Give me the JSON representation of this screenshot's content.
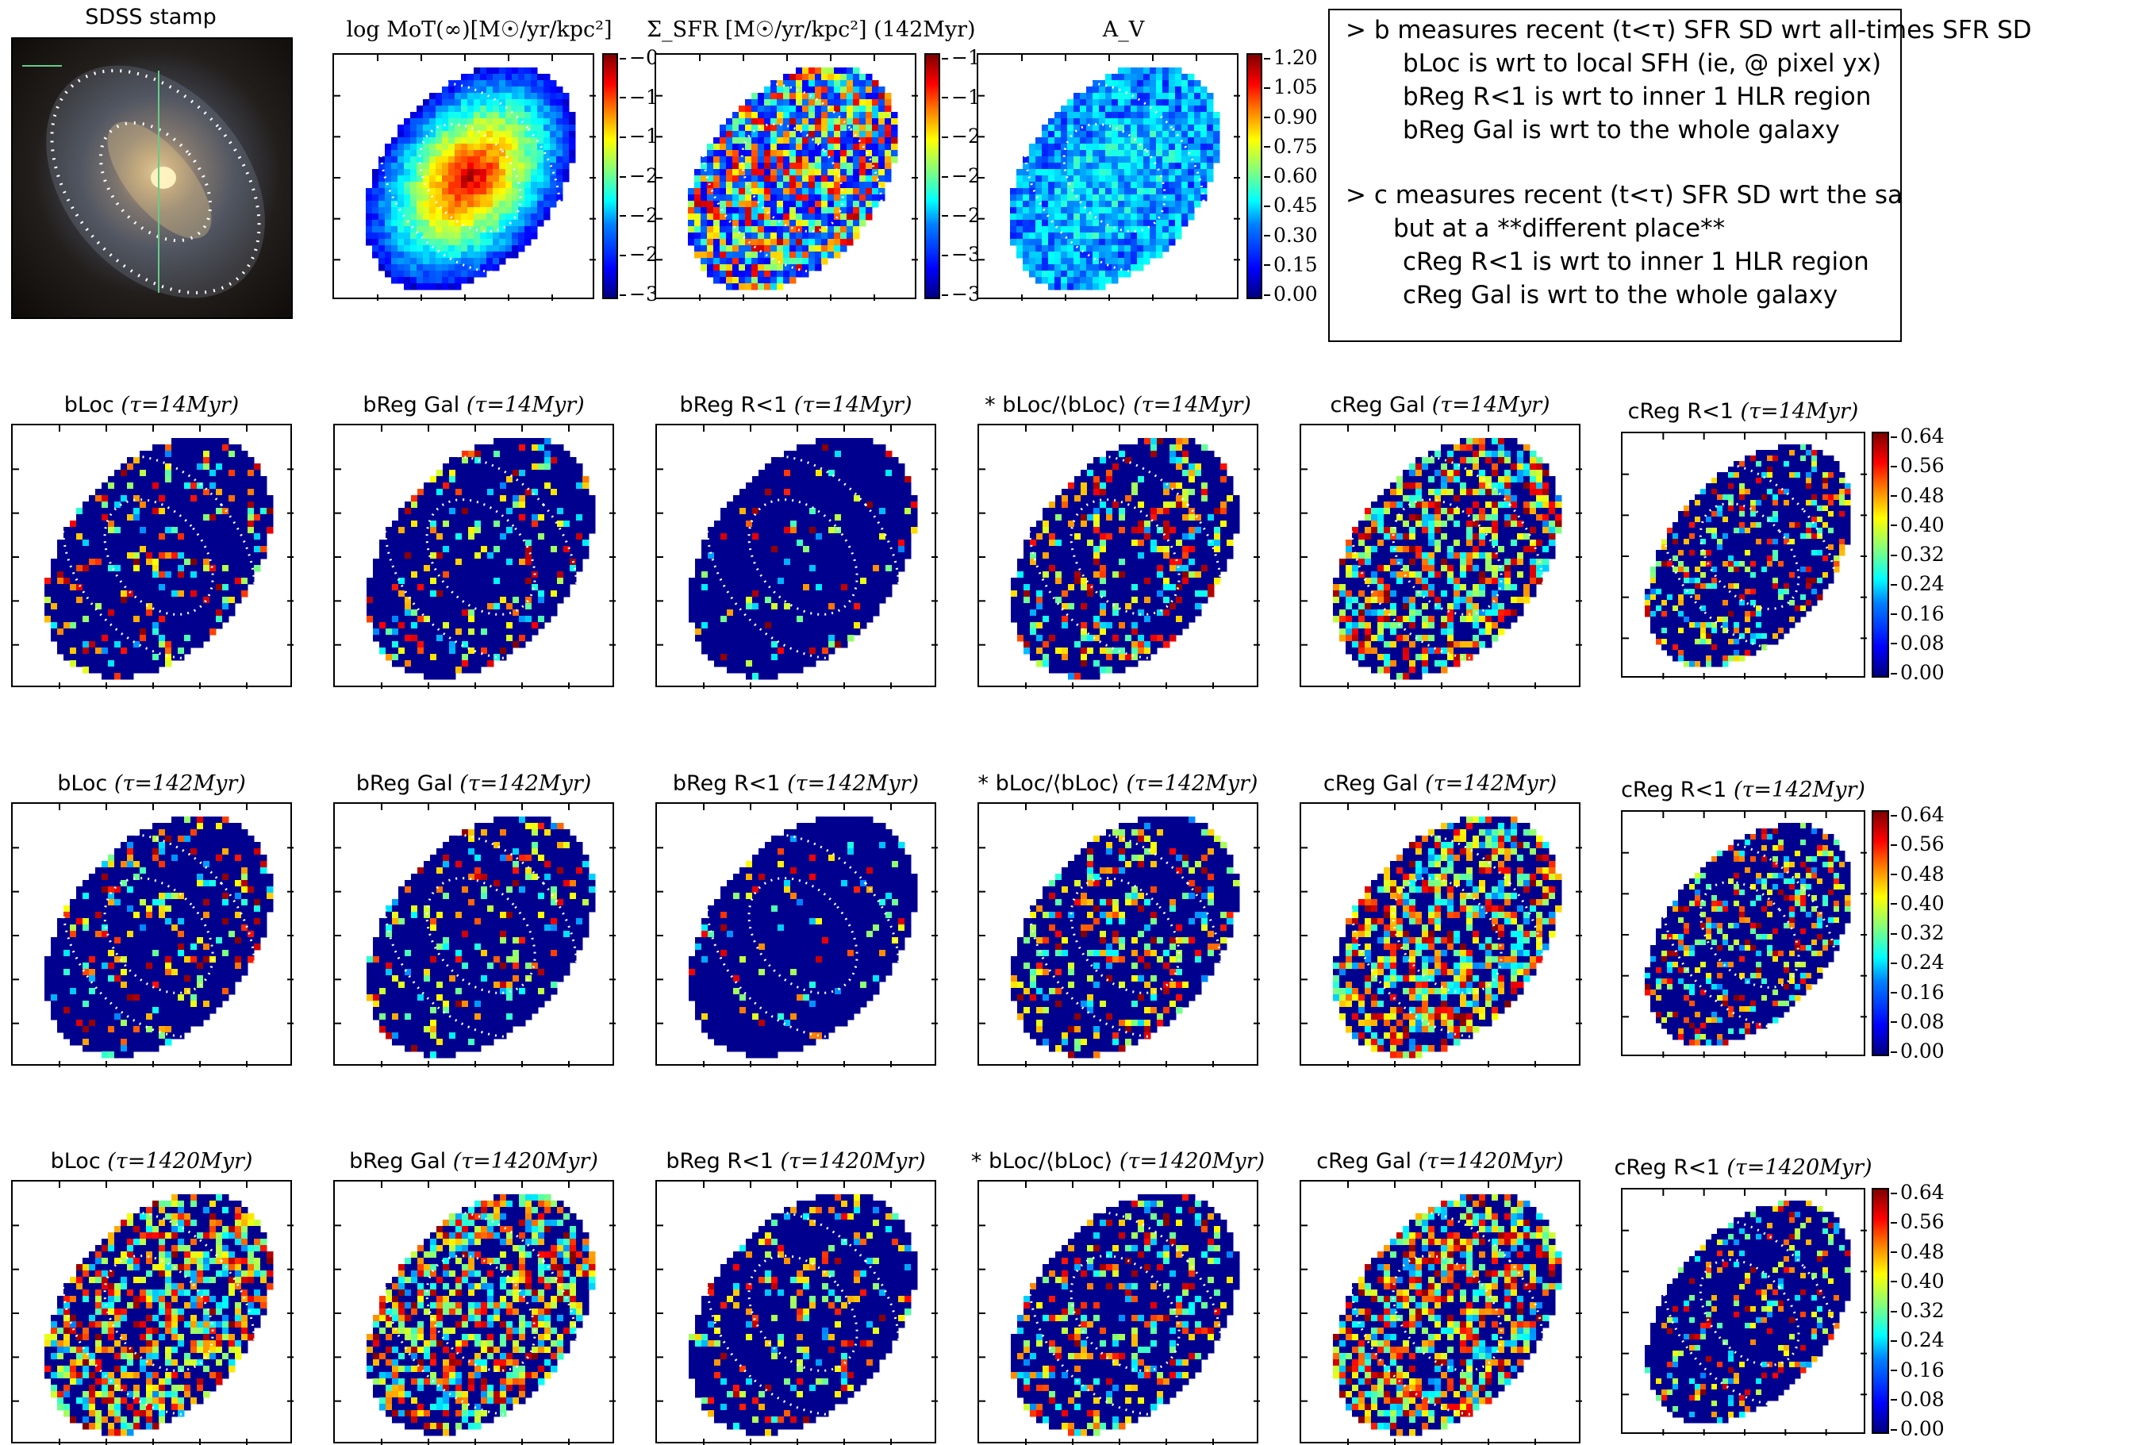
{
  "stamp": {
    "title": "SDSS stamp"
  },
  "top_panels": [
    {
      "title_text": "log MoT(∞)[M☉/yr/kpc²]",
      "title_suffix": "",
      "colorbar_ticks": [
        "−0",
        "−1",
        "−1",
        "−2",
        "−2",
        "−2",
        "−3"
      ],
      "map_style": "mass"
    },
    {
      "title_text": "Σ_SFR [M☉/yr/kpc²]",
      "title_suffix": "(142Myr)",
      "colorbar_ticks": [
        "−1",
        "−1",
        "−2",
        "−2",
        "−2",
        "−3",
        "−3"
      ],
      "map_style": "sfr"
    },
    {
      "title_text": "A_V",
      "title_suffix": "",
      "colorbar_ticks": [
        "1.20",
        "1.05",
        "0.90",
        "0.75",
        "0.60",
        "0.45",
        "0.30",
        "0.15",
        "0.00"
      ],
      "map_style": "av"
    }
  ],
  "notes": [
    "> b measures recent (t<τ) SFR SD wrt all-times SFR SD",
    "bLoc is wrt to local SFH (ie, @ pixel yx)",
    "bReg R<1 is wrt to inner 1 HLR region",
    "bReg Gal is wrt to the whole galaxy",
    "> c measures recent (t<τ) SFR SD wrt the same recent SFR SD",
    "but at a **different place**",
    "cReg R<1 is wrt to inner 1 HLR region",
    "cReg Gal is wrt to the whole galaxy"
  ],
  "rows": [
    {
      "tau": "τ=14Myr",
      "panels": [
        "bLoc",
        "bReg Gal",
        "bReg R<1",
        "* bLoc/⟨bLoc⟩",
        "cReg Gal",
        "cReg R<1"
      ]
    },
    {
      "tau": "τ=142Myr",
      "panels": [
        "bLoc",
        "bReg Gal",
        "bReg R<1",
        "* bLoc/⟨bLoc⟩",
        "cReg Gal",
        "cReg R<1"
      ]
    },
    {
      "tau": "τ=1420Myr",
      "panels": [
        "bLoc",
        "bReg Gal",
        "bReg R<1",
        "* bLoc/⟨bLoc⟩",
        "cReg Gal",
        "cReg R<1"
      ]
    }
  ],
  "row_colorbar_ticks": [
    "0.64",
    "0.56",
    "0.48",
    "0.40",
    "0.32",
    "0.24",
    "0.16",
    "0.08",
    "0.00"
  ],
  "chart_data": {
    "type": "heatmap",
    "title": "",
    "colormap": "jet",
    "colorbar_range_rows": [
      0.0,
      0.68
    ],
    "colorbar_range_av": [
      0.0,
      1.2
    ],
    "panels": [
      "log MoT(∞)",
      "Σ_SFR (142Myr)",
      "A_V",
      "bLoc τ=14Myr",
      "bReg Gal τ=14Myr",
      "bReg R<1 τ=14Myr",
      "* bLoc/⟨bLoc⟩ τ=14Myr",
      "cReg Gal τ=14Myr",
      "cReg R<1 τ=14Myr",
      "bLoc τ=142Myr",
      "bReg Gal τ=142Myr",
      "bReg R<1 τ=142Myr",
      "* bLoc/⟨bLoc⟩ τ=142Myr",
      "cReg Gal τ=142Myr",
      "cReg R<1 τ=142Myr",
      "bLoc τ=1420Myr",
      "bReg Gal τ=1420Myr",
      "bReg R<1 τ=1420Myr",
      "* bLoc/⟨bLoc⟩ τ=1420Myr",
      "cReg Gal τ=1420Myr",
      "cReg R<1 τ=1420Myr"
    ]
  }
}
